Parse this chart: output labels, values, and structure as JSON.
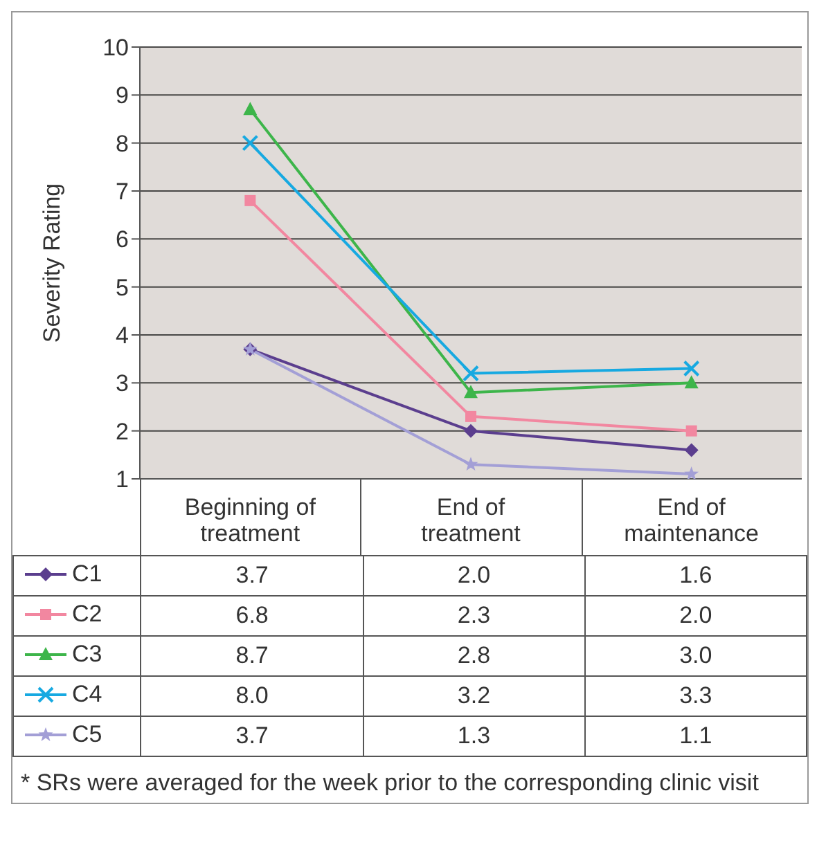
{
  "chart_data": {
    "type": "line",
    "ylabel": "Severity Rating",
    "categories": [
      "Beginning of treatment",
      "End of treatment",
      "End of maintenance"
    ],
    "ylim": [
      1,
      10
    ],
    "yticks": [
      1,
      2,
      3,
      4,
      5,
      6,
      7,
      8,
      9,
      10
    ],
    "grid": "y",
    "legend": "bottom left",
    "line_style": "solid",
    "series": [
      {
        "name": "C1",
        "color": "#5b3e8e",
        "marker": "diamond",
        "values": [
          3.7,
          2.0,
          1.6
        ],
        "value_labels": [
          "3.7",
          "2.0",
          "1.6"
        ]
      },
      {
        "name": "C2",
        "color": "#f287a0",
        "marker": "square",
        "values": [
          6.8,
          2.3,
          2.0
        ],
        "value_labels": [
          "6.8",
          "2.3",
          "2.0"
        ]
      },
      {
        "name": "C3",
        "color": "#3db54a",
        "marker": "triangle",
        "values": [
          8.7,
          2.8,
          3.0
        ],
        "value_labels": [
          "8.7",
          "2.8",
          "3.0"
        ]
      },
      {
        "name": "C4",
        "color": "#17a9e1",
        "marker": "cross",
        "values": [
          8.0,
          3.2,
          3.3
        ],
        "value_labels": [
          "8.0",
          "3.2",
          "3.3"
        ]
      },
      {
        "name": "C5",
        "color": "#a39fd6",
        "marker": "star",
        "values": [
          3.7,
          1.3,
          1.1
        ],
        "value_labels": [
          "3.7",
          "1.3",
          "1.1"
        ]
      }
    ],
    "annotations": [
      "* SRs were averaged for the week prior to the corresponding clinic visit"
    ]
  }
}
